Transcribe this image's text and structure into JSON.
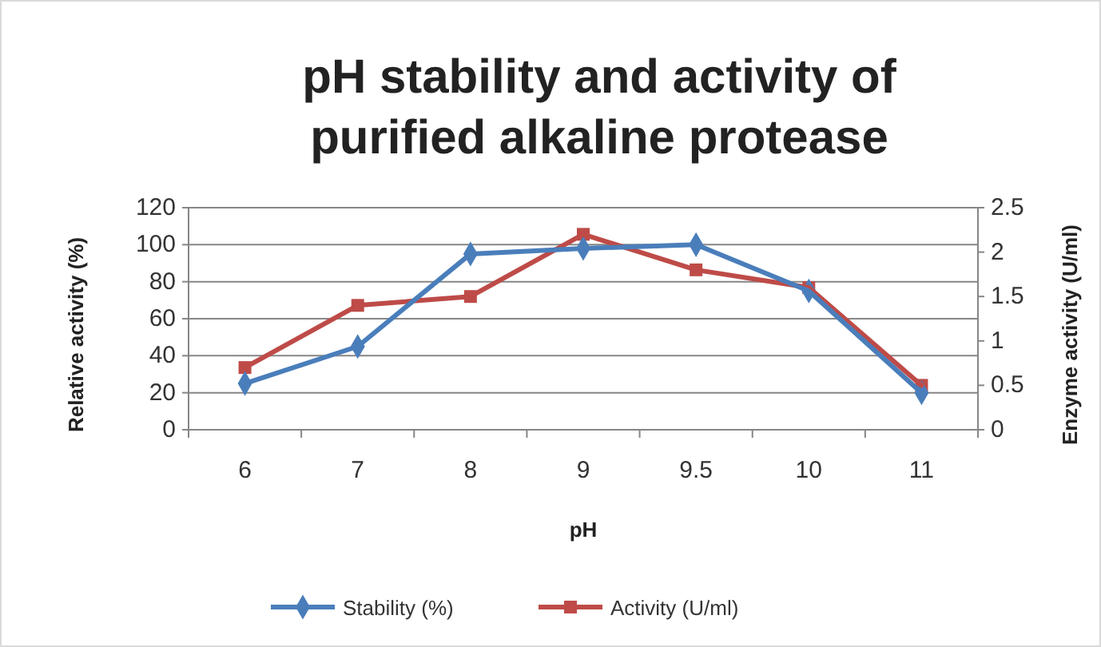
{
  "chart_data": {
    "type": "line",
    "title": "pH stability and activity of purified alkaline protease",
    "xlabel": "pH",
    "ylabel": "Relative activity (%)",
    "y2label": "Enzyme activity (U/ml)",
    "categories": [
      "6",
      "7",
      "8",
      "9",
      "9.5",
      "10",
      "11"
    ],
    "series": [
      {
        "name": "Stability (%)",
        "color": "#4a7ebb",
        "marker": "diamond",
        "values": [
          25,
          45,
          95,
          98,
          100,
          75,
          20
        ]
      },
      {
        "name": "Activity (U/ml)",
        "color": "#be4b48",
        "marker": "square",
        "axis": "y2",
        "values": [
          0.7,
          1.4,
          1.5,
          2.2,
          1.8,
          1.6,
          0.5
        ]
      }
    ],
    "ylim": [
      0,
      120
    ],
    "yticks": [
      0,
      20,
      40,
      60,
      80,
      100,
      120
    ],
    "y2lim": [
      0,
      2.5
    ],
    "y2ticks": [
      0,
      0.5,
      1,
      1.5,
      2,
      2.5
    ],
    "grid": "y",
    "legend": "bottom"
  }
}
